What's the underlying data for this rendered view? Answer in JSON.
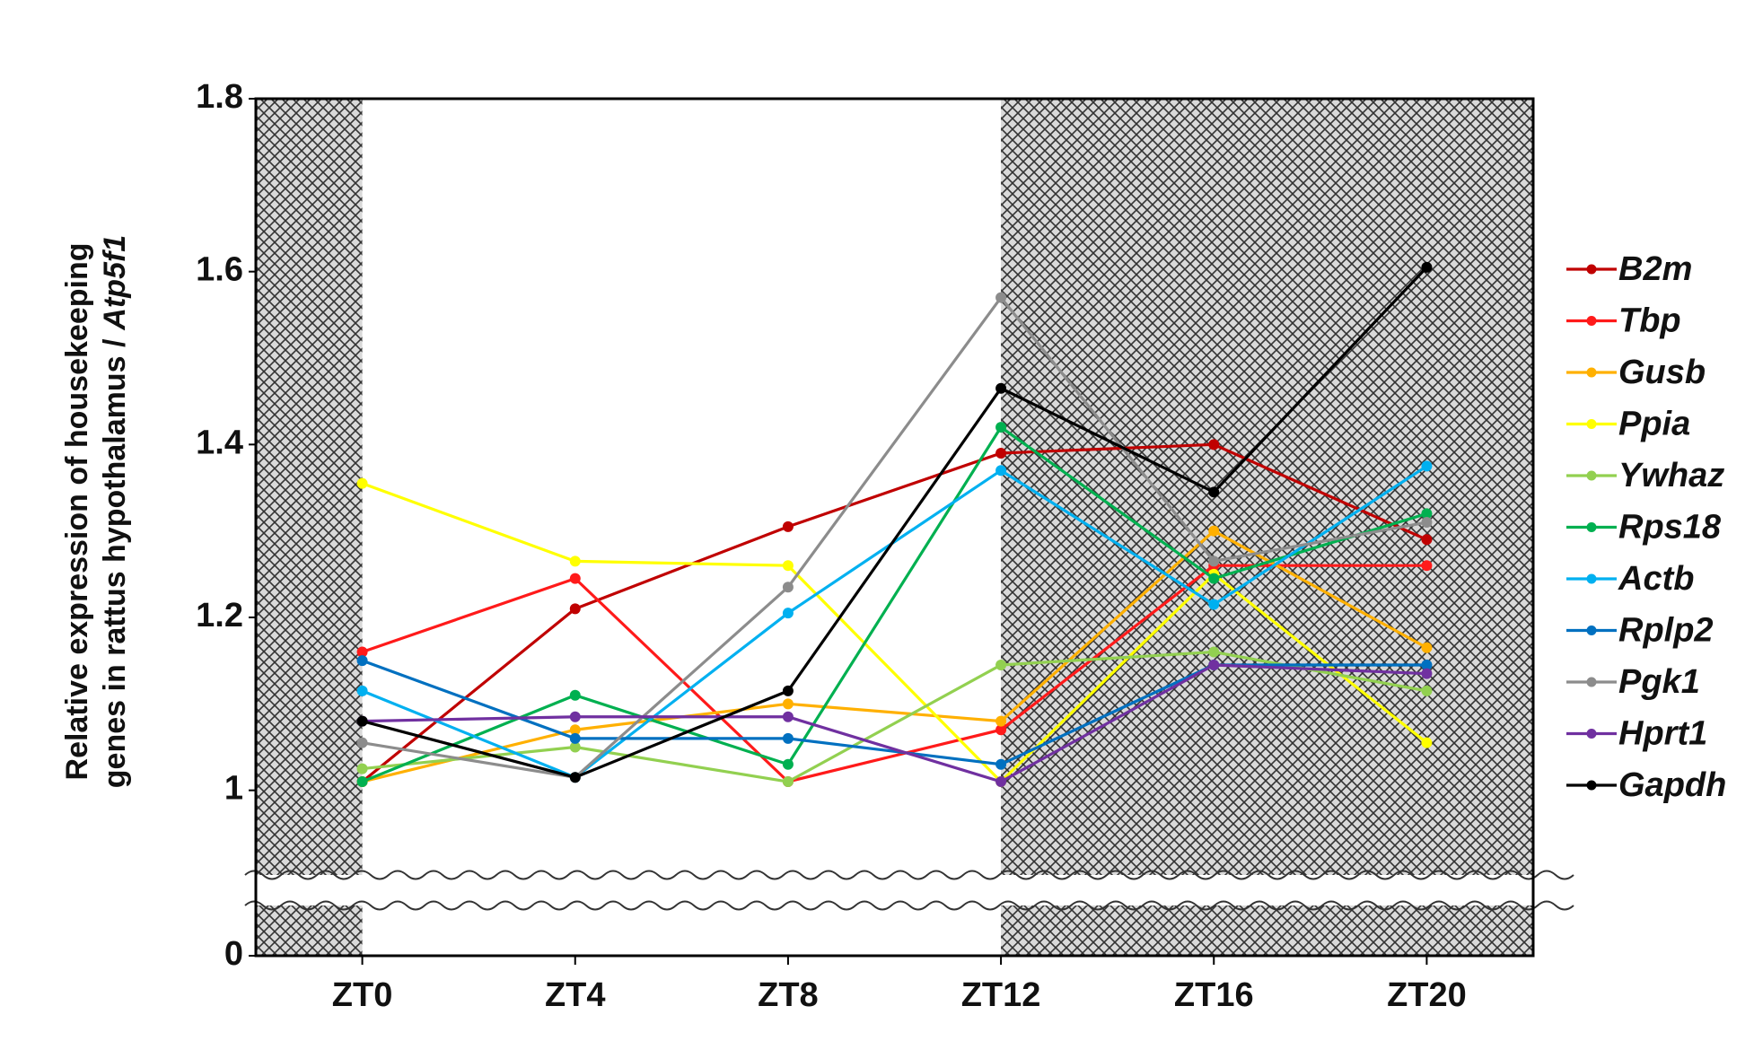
{
  "chart_data": {
    "type": "line",
    "y_label": [
      "Relative expression of housekeeping",
      "genes in rattus hypothalamus /",
      "Atp5f1"
    ],
    "categories": [
      "ZT0",
      "ZT4",
      "ZT8",
      "ZT12",
      "ZT16",
      "ZT20"
    ],
    "series": [
      {
        "name": "B2m",
        "color": "#c00000",
        "values": [
          1.01,
          1.21,
          1.305,
          1.39,
          1.4,
          1.29
        ]
      },
      {
        "name": "Tbp",
        "color": "#ff1a1a",
        "values": [
          1.16,
          1.245,
          1.01,
          1.07,
          1.26,
          1.26
        ]
      },
      {
        "name": "Gusb",
        "color": "#ffb000",
        "values": [
          1.01,
          1.07,
          1.1,
          1.08,
          1.3,
          1.165
        ]
      },
      {
        "name": "Ppia",
        "color": "#ffff00",
        "values": [
          1.355,
          1.265,
          1.26,
          1.01,
          1.25,
          1.055
        ]
      },
      {
        "name": "Ywhaz",
        "color": "#92d050",
        "values": [
          1.025,
          1.05,
          1.01,
          1.145,
          1.16,
          1.115
        ]
      },
      {
        "name": "Rps18",
        "color": "#00b050",
        "values": [
          1.01,
          1.11,
          1.03,
          1.42,
          1.245,
          1.32
        ]
      },
      {
        "name": "Actb",
        "color": "#00b0f0",
        "values": [
          1.115,
          1.015,
          1.205,
          1.37,
          1.215,
          1.375
        ]
      },
      {
        "name": "Rplp2",
        "color": "#0070c0",
        "values": [
          1.15,
          1.06,
          1.06,
          1.03,
          1.145,
          1.145
        ]
      },
      {
        "name": "Pgk1",
        "color": "#8c8c8c",
        "values": [
          1.055,
          1.015,
          1.235,
          1.57,
          1.265,
          1.31
        ]
      },
      {
        "name": "Hprt1",
        "color": "#7030a0",
        "values": [
          1.08,
          1.085,
          1.085,
          1.01,
          1.145,
          1.135
        ]
      },
      {
        "name": "Gapdh",
        "color": "#000000",
        "values": [
          1.08,
          1.015,
          1.115,
          1.465,
          1.345,
          1.605
        ]
      }
    ],
    "ylim": [
      0,
      1.8
    ],
    "yticks": [
      0,
      1.0,
      1.2,
      1.4,
      1.6,
      1.8
    ],
    "ybreak": [
      0,
      0.9
    ],
    "dark_periods": [
      [
        -0.5,
        0
      ],
      [
        3,
        5.5
      ]
    ],
    "grid": false,
    "legend": "right"
  }
}
